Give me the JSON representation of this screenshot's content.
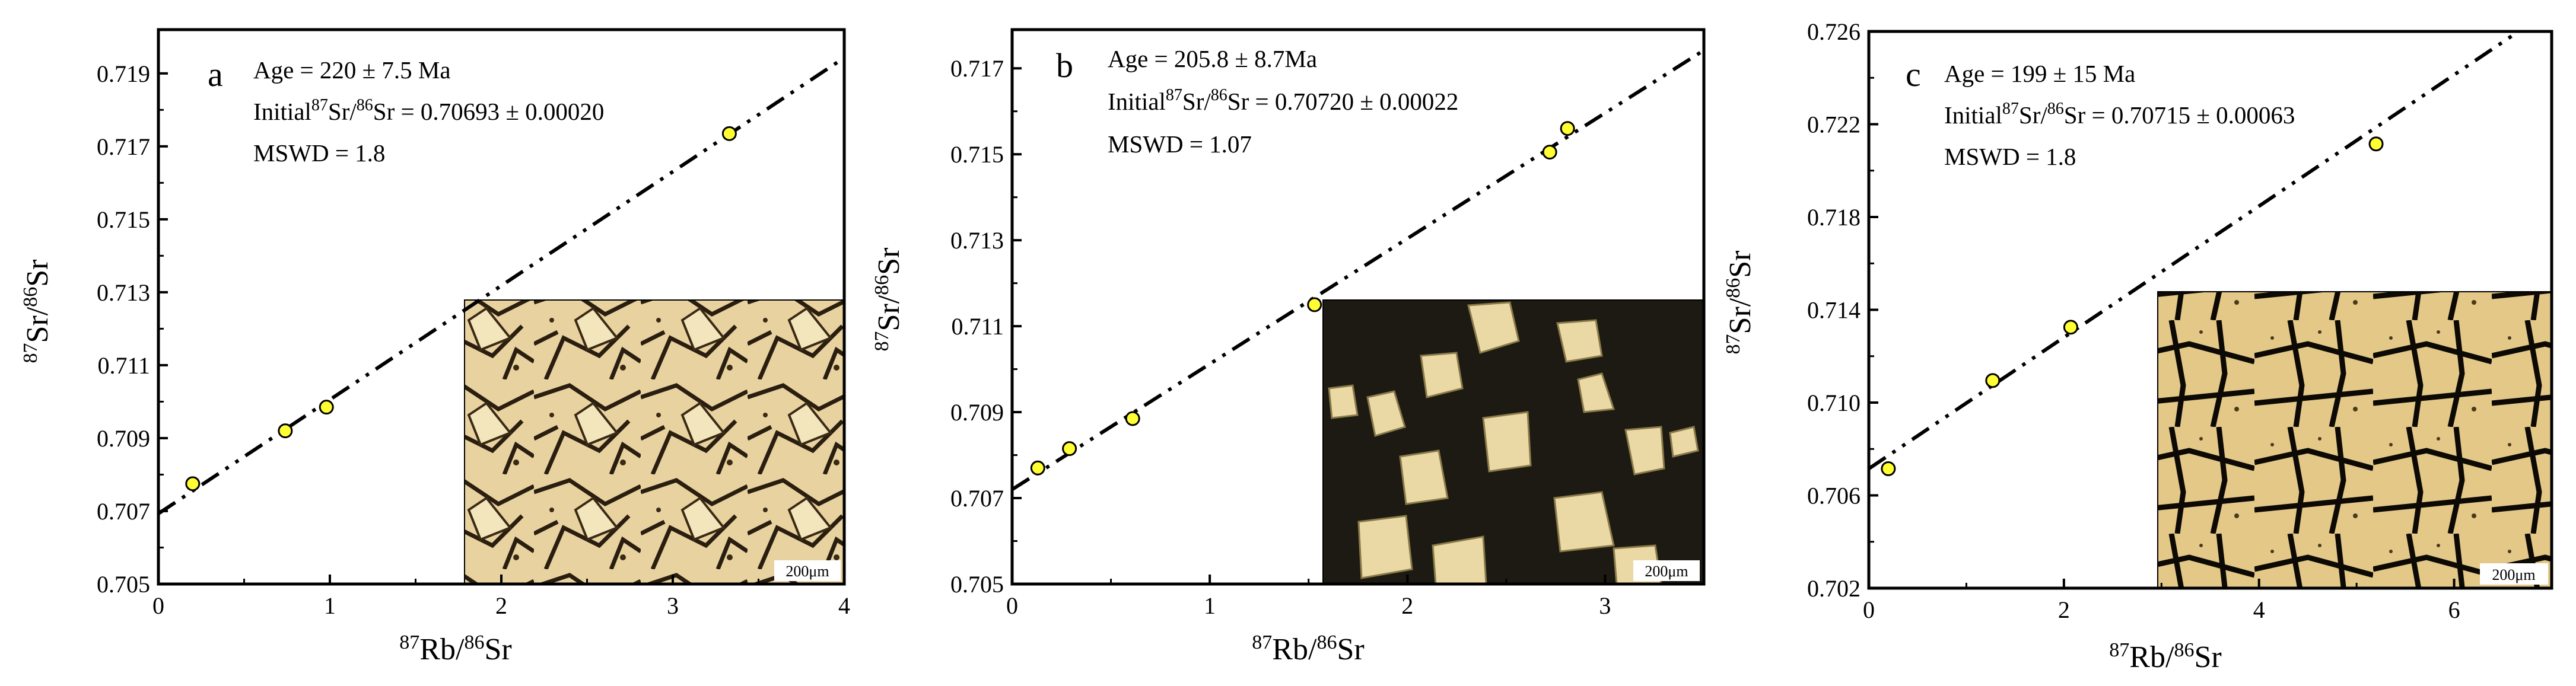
{
  "chart_data": [
    {
      "type": "scatter",
      "panel": "a",
      "age_label": "Age = 220 ± 7.5 Ma",
      "initial_ratio_prefix": "Initial",
      "initial_ratio_value": "= 0.70693 ± 0.00020",
      "mswd_label": "MSWD = 1.8",
      "xlabel": "87Rb/86Sr",
      "ylabel": "87Sr/86Sr",
      "xlim": [
        0,
        4
      ],
      "ylim": [
        0.705,
        0.7202
      ],
      "xticks": [
        0,
        1,
        2,
        3,
        4
      ],
      "yticks": [
        0.705,
        0.707,
        0.709,
        0.711,
        0.713,
        0.715,
        0.717,
        0.719
      ],
      "ytick_labels": [
        "0.705",
        "0.707",
        "0.709",
        "0.711",
        "0.713",
        "0.715",
        "0.717",
        "0.719"
      ],
      "points": [
        {
          "x": 0.2,
          "y": 0.70775
        },
        {
          "x": 0.74,
          "y": 0.7092
        },
        {
          "x": 0.98,
          "y": 0.70985
        },
        {
          "x": 3.33,
          "y": 0.71735
        }
      ],
      "isochron": {
        "intercept": 0.70693,
        "slope": 0.003125
      },
      "inset_scale_label": "200μm"
    },
    {
      "type": "scatter",
      "panel": "b",
      "age_label": "Age = 205.8 ± 8.7Ma",
      "initial_ratio_prefix": "Initial",
      "initial_ratio_value": "= 0.70720 ± 0.00022",
      "mswd_label": "MSWD = 1.07",
      "xlabel": "87Rb/86Sr",
      "ylabel": "87Sr/86Sr",
      "xlim": [
        0,
        3.5
      ],
      "ylim": [
        0.705,
        0.7179
      ],
      "xticks": [
        0,
        1,
        2,
        3
      ],
      "yticks": [
        0.705,
        0.707,
        0.709,
        0.711,
        0.713,
        0.715,
        0.717
      ],
      "ytick_labels": [
        "0.705",
        "0.707",
        "0.709",
        "0.711",
        "0.713",
        "0.715",
        "0.717"
      ],
      "points": [
        {
          "x": 0.13,
          "y": 0.7077
        },
        {
          "x": 0.29,
          "y": 0.70815
        },
        {
          "x": 0.61,
          "y": 0.70885
        },
        {
          "x": 1.53,
          "y": 0.7115
        },
        {
          "x": 2.72,
          "y": 0.71505
        },
        {
          "x": 2.81,
          "y": 0.7156
        }
      ],
      "isochron": {
        "intercept": 0.7072,
        "slope": 0.00292
      },
      "inset_scale_label": "200μm"
    },
    {
      "type": "scatter",
      "panel": "c",
      "age_label": "Age = 199 ± 15 Ma",
      "initial_ratio_prefix": "Initial",
      "initial_ratio_value": "= 0.70715 ± 0.00063",
      "mswd_label": "MSWD = 1.8",
      "xlabel": "87Rb/86Sr",
      "ylabel": "87Sr/86Sr",
      "xlim": [
        0,
        7
      ],
      "ylim": [
        0.702,
        0.726
      ],
      "xticks": [
        0,
        2,
        4,
        6
      ],
      "yticks": [
        0.702,
        0.706,
        0.71,
        0.714,
        0.718,
        0.722,
        0.726
      ],
      "ytick_labels": [
        "0.702",
        "0.706",
        "0.710",
        "0.714",
        "0.718",
        "0.722",
        "0.726"
      ],
      "points": [
        {
          "x": 0.2,
          "y": 0.70715
        },
        {
          "x": 1.27,
          "y": 0.71095
        },
        {
          "x": 2.07,
          "y": 0.71325
        },
        {
          "x": 5.2,
          "y": 0.72115
        }
      ],
      "isochron": {
        "intercept": 0.70715,
        "slope": 0.00283
      },
      "inset_scale_label": "200μm"
    }
  ],
  "superscripts": {
    "sr87": "87",
    "sr86": "86",
    "rb87": "87"
  },
  "element_names": {
    "sr": "Sr",
    "rb": "Rb",
    "sr_slash": "Sr/",
    "rb_slash": "Rb/"
  },
  "colors": {
    "point_fill": "#ffff33",
    "point_stroke": "#000000",
    "axis": "#000000",
    "inset_a": "#e8d3a0",
    "inset_b": "#1c1a12",
    "inset_c": "#e3c888"
  }
}
